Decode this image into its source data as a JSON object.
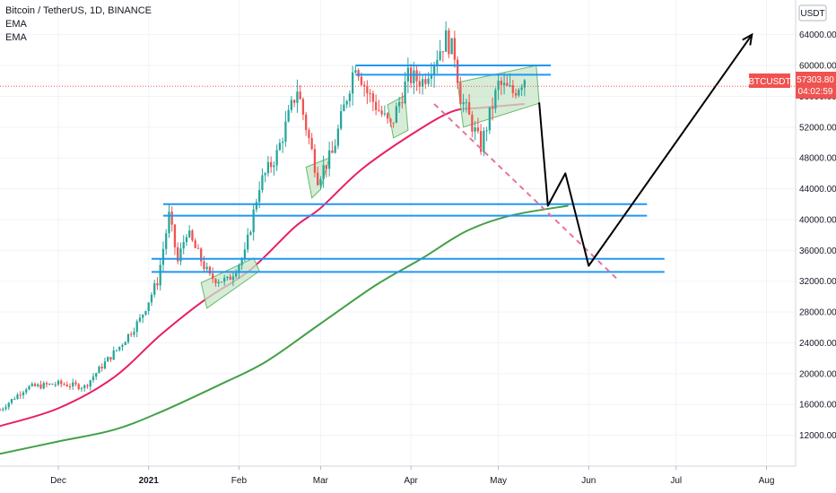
{
  "header": {
    "symbol_line": "Bitcoin / TetherUS, 1D, BINANCE",
    "indicators": [
      "EMA",
      "EMA"
    ]
  },
  "price_axis": {
    "currency": "USDT",
    "current_symbol": "BTCUSDT",
    "current_price": "57303.80",
    "countdown": "04:02:59"
  },
  "colors": {
    "up": "#26a69a",
    "down": "#ef5350",
    "ema_fast": "#e91e63",
    "ema_slow": "#43a047",
    "levels": "#2196f3",
    "box_fill": "#c8e6c9",
    "box_stroke": "#66bb6a",
    "projection": "#000000",
    "trendline": "#e57399"
  },
  "chart_data": {
    "type": "candlestick",
    "y_ticks": [
      12000,
      16000,
      20000,
      24000,
      28000,
      32000,
      36000,
      40000,
      44000,
      48000,
      52000,
      56000,
      60000,
      64000
    ],
    "y_tick_labels": [
      "12000.00",
      "16000.00",
      "20000.00",
      "24000.00",
      "28000.00",
      "32000.00",
      "36000.00",
      "40000.00",
      "44000.00",
      "48000.00",
      "52000.00",
      "56000.00",
      "60000.00",
      "64000.00"
    ],
    "ylim": [
      8000,
      68500
    ],
    "x_ticks": [
      {
        "label": "Dec",
        "date": "2020-12-01"
      },
      {
        "label": "2021",
        "date": "2021-01-01"
      },
      {
        "label": "Feb",
        "date": "2021-02-01"
      },
      {
        "label": "Mar",
        "date": "2021-03-01"
      },
      {
        "label": "Apr",
        "date": "2021-04-01"
      },
      {
        "label": "May",
        "date": "2021-05-01"
      },
      {
        "label": "Jun",
        "date": "2021-06-01"
      },
      {
        "label": "Jul",
        "date": "2021-07-01"
      },
      {
        "label": "Aug",
        "date": "2021-08-01"
      }
    ],
    "xlim": [
      "2020-11-11",
      "2021-08-11"
    ],
    "last_date": "2021-05-10",
    "anchors": [
      [
        "2020-11-11",
        15300
      ],
      [
        "2020-11-20",
        18200
      ],
      [
        "2020-12-01",
        18700
      ],
      [
        "2020-12-10",
        18300
      ],
      [
        "2020-12-16",
        21000
      ],
      [
        "2020-12-22",
        23500
      ],
      [
        "2020-12-29",
        27000
      ],
      [
        "2021-01-04",
        32000
      ],
      [
        "2021-01-08",
        40500
      ],
      [
        "2021-01-11",
        34500
      ],
      [
        "2021-01-14",
        38500
      ],
      [
        "2021-01-22",
        32500
      ],
      [
        "2021-01-28",
        32000
      ],
      [
        "2021-02-03",
        35500
      ],
      [
        "2021-02-08",
        44500
      ],
      [
        "2021-02-14",
        48500
      ],
      [
        "2021-02-21",
        57000
      ],
      [
        "2021-02-28",
        45500
      ],
      [
        "2021-03-05",
        48500
      ],
      [
        "2021-03-13",
        60500
      ],
      [
        "2021-03-17",
        56500
      ],
      [
        "2021-03-25",
        52000
      ],
      [
        "2021-03-31",
        58500
      ],
      [
        "2021-04-05",
        58000
      ],
      [
        "2021-04-13",
        63500
      ],
      [
        "2021-04-16",
        61500
      ],
      [
        "2021-04-18",
        56000
      ],
      [
        "2021-04-25",
        49500
      ],
      [
        "2021-05-01",
        57500
      ],
      [
        "2021-05-06",
        56500
      ],
      [
        "2021-05-10",
        58500
      ]
    ],
    "ema_fast": [
      [
        "2020-11-11",
        13200
      ],
      [
        "2020-12-01",
        15500
      ],
      [
        "2020-12-20",
        19500
      ],
      [
        "2021-01-05",
        25000
      ],
      [
        "2021-01-20",
        29500
      ],
      [
        "2021-02-05",
        33500
      ],
      [
        "2021-02-20",
        39000
      ],
      [
        "2021-03-01",
        41500
      ],
      [
        "2021-03-15",
        46500
      ],
      [
        "2021-04-01",
        51000
      ],
      [
        "2021-04-15",
        54000
      ],
      [
        "2021-04-25",
        54500
      ],
      [
        "2021-05-10",
        55000
      ]
    ],
    "ema_slow": [
      [
        "2020-11-11",
        9600
      ],
      [
        "2020-12-01",
        11200
      ],
      [
        "2020-12-20",
        12700
      ],
      [
        "2021-01-05",
        15000
      ],
      [
        "2021-01-25",
        18500
      ],
      [
        "2021-02-10",
        21500
      ],
      [
        "2021-03-01",
        26500
      ],
      [
        "2021-03-20",
        31500
      ],
      [
        "2021-04-05",
        35000
      ],
      [
        "2021-04-20",
        38500
      ],
      [
        "2021-05-05",
        40500
      ],
      [
        "2021-05-25",
        41800
      ]
    ],
    "horizontal_levels": [
      {
        "price": 42000,
        "from": "2021-01-06",
        "to": "2021-06-21"
      },
      {
        "price": 40500,
        "from": "2021-01-06",
        "to": "2021-06-21"
      },
      {
        "price": 34900,
        "from": "2021-01-02",
        "to": "2021-06-27"
      },
      {
        "price": 33200,
        "from": "2021-01-02",
        "to": "2021-06-27"
      },
      {
        "price": 60000,
        "from": "2021-03-13",
        "to": "2021-05-19"
      },
      {
        "price": 58800,
        "from": "2021-03-13",
        "to": "2021-05-19"
      }
    ],
    "consolidation_boxes": [
      [
        [
          "2021-01-19",
          31800
        ],
        [
          "2021-02-06",
          35000
        ],
        [
          "2021-02-08",
          33300
        ],
        [
          "2021-01-21",
          28500
        ]
      ],
      [
        [
          "2021-02-24",
          46800
        ],
        [
          "2021-03-04",
          48000
        ],
        [
          "2021-03-01",
          43900
        ],
        [
          "2021-02-26",
          42800
        ]
      ],
      [
        [
          "2021-03-24",
          54900
        ],
        [
          "2021-03-30",
          56100
        ],
        [
          "2021-03-31",
          51600
        ],
        [
          "2021-03-26",
          50600
        ]
      ],
      [
        [
          "2021-04-17",
          57800
        ],
        [
          "2021-05-14",
          60000
        ],
        [
          "2021-05-15",
          55100
        ],
        [
          "2021-04-19",
          52000
        ]
      ]
    ],
    "trendline": [
      [
        "2021-04-09",
        55000
      ],
      [
        "2021-06-11",
        32200
      ]
    ],
    "projection_path": [
      [
        "2021-05-15",
        55200
      ],
      [
        "2021-05-18",
        41800
      ],
      [
        "2021-05-24",
        46000
      ],
      [
        "2021-06-01",
        34000
      ],
      [
        "2021-07-27",
        64000
      ]
    ]
  }
}
